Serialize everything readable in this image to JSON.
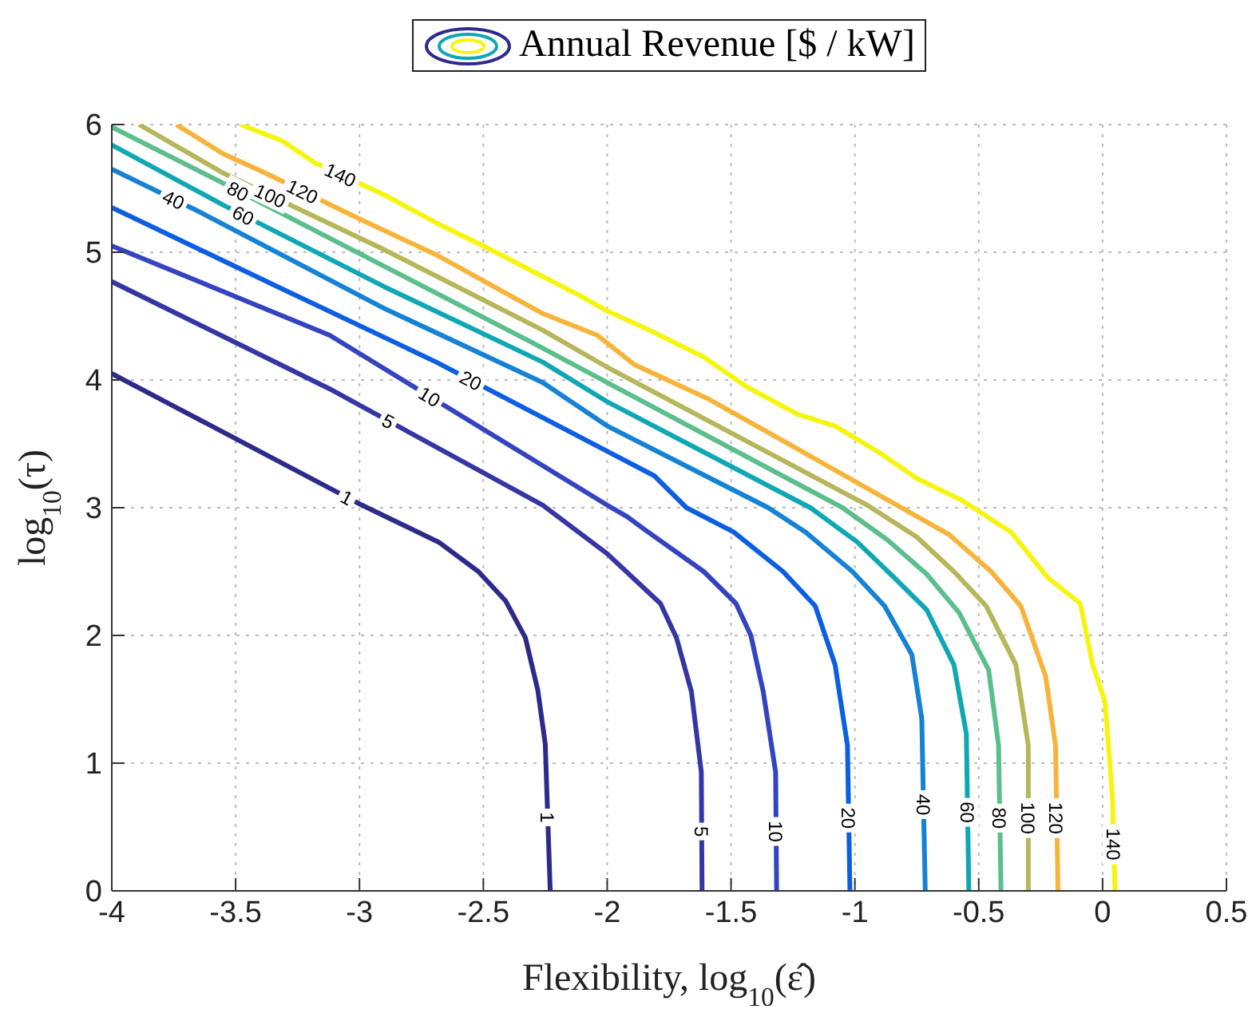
{
  "chart_data": {
    "type": "line",
    "legend_title": "Annual Revenue [$ / kW]",
    "xlabel": "Flexibility, log$_{10}$(ε̂)",
    "ylabel": "log$_{10}$(τ)",
    "xlim": [
      -4,
      0.5
    ],
    "xticks": [
      -4,
      -3.5,
      -3,
      -2.5,
      -2,
      -1.5,
      -1,
      -0.5,
      0,
      0.5
    ],
    "ylim": [
      0,
      6
    ],
    "yticks": [
      0,
      1,
      2,
      3,
      4,
      5,
      6
    ],
    "grid": true,
    "marker": "none",
    "line_style": "solid",
    "series": [
      {
        "name": "1",
        "color": "#2e2a8a",
        "x": [
          -4,
          -2.99,
          -2.68,
          -2.52,
          -2.41,
          -2.33,
          -2.28,
          -2.25,
          -2.23
        ],
        "values": [
          4.05,
          3.02,
          2.73,
          2.5,
          2.27,
          1.98,
          1.57,
          1.15,
          0
        ]
      },
      {
        "name": "5",
        "color": "#3336a3",
        "x": [
          -4,
          -3.12,
          -2.26,
          -2,
          -1.785,
          -1.72,
          -1.66,
          -1.62,
          -1.617
        ],
        "values": [
          4.77,
          3.93,
          3.02,
          2.64,
          2.25,
          1.98,
          1.56,
          0.93,
          0
        ]
      },
      {
        "name": "10",
        "color": "#3444c0",
        "x": [
          -4,
          -3.12,
          -2.0,
          -1.92,
          -1.85,
          -1.61,
          -1.48,
          -1.42,
          -1.37,
          -1.32,
          -1.316
        ],
        "values": [
          5.05,
          4.35,
          3.02,
          2.93,
          2.83,
          2.5,
          2.25,
          2.0,
          1.56,
          0.93,
          0
        ]
      },
      {
        "name": "20",
        "color": "#0c5fe0",
        "x": [
          -4,
          -3.33,
          -2.69,
          -1.81,
          -1.68,
          -1.49,
          -1.29,
          -1.16,
          -1.08,
          -1.03,
          -1.02
        ],
        "values": [
          5.35,
          4.73,
          4.14,
          3.25,
          3.0,
          2.81,
          2.5,
          2.23,
          1.77,
          1.14,
          0
        ]
      },
      {
        "name": "40",
        "color": "#1582d4",
        "x": [
          -4,
          -3.66,
          -2.9,
          -2.26,
          -2,
          -1.35,
          -1.2,
          -1.01,
          -0.88,
          -0.77,
          -0.73,
          -0.716
        ],
        "values": [
          5.65,
          5.33,
          4.56,
          3.98,
          3.64,
          3.0,
          2.81,
          2.5,
          2.23,
          1.85,
          1.35,
          0
        ]
      },
      {
        "name": "60",
        "color": "#10a7b5",
        "x": [
          -4,
          -3.55,
          -2.9,
          -2.26,
          -2,
          -1.18,
          -0.99,
          -0.84,
          -0.71,
          -0.6,
          -0.55,
          -0.54
        ],
        "values": [
          5.84,
          5.37,
          4.73,
          4.14,
          3.83,
          3.0,
          2.73,
          2.45,
          2.2,
          1.77,
          1.23,
          0
        ]
      },
      {
        "name": "80",
        "color": "#5bbf8c",
        "x": [
          -4,
          -3.57,
          -2.9,
          -2.3,
          -2,
          -1.05,
          -0.87,
          -0.71,
          -0.58,
          -0.46,
          -0.42,
          -0.41
        ],
        "values": [
          5.98,
          5.56,
          4.89,
          4.29,
          3.98,
          3.0,
          2.75,
          2.48,
          2.18,
          1.73,
          1.14,
          0
        ]
      },
      {
        "name": "100",
        "color": "#b6b65a",
        "x": [
          -3.89,
          -3.55,
          -2.9,
          -2.26,
          -2,
          -0.95,
          -0.75,
          -0.6,
          -0.47,
          -0.35,
          -0.3,
          -0.3
        ],
        "values": [
          6,
          5.62,
          5.02,
          4.39,
          4.1,
          3.02,
          2.77,
          2.5,
          2.23,
          1.77,
          1.14,
          0
        ]
      },
      {
        "name": "120",
        "color": "#f8b43a",
        "x": [
          -3.74,
          -3.55,
          -3.38,
          -3.01,
          -2.69,
          -2.26,
          -2.04,
          -1.89,
          -1.59,
          -1.25,
          -0.83,
          -0.62,
          -0.45,
          -0.33,
          -0.23,
          -0.19,
          -0.18
        ],
        "values": [
          6,
          5.77,
          5.62,
          5.27,
          4.98,
          4.52,
          4.35,
          4.12,
          3.85,
          3.48,
          3.02,
          2.79,
          2.5,
          2.23,
          1.68,
          1.14,
          0
        ]
      },
      {
        "name": "140",
        "color": "#f5f50f",
        "x": [
          -3.48,
          -3.31,
          -3.18,
          -2.9,
          -2.69,
          -2.47,
          -2.3,
          -2.11,
          -2,
          -1.83,
          -1.61,
          -1.44,
          -1.23,
          -1.08,
          -0.9,
          -0.75,
          -0.57,
          -0.37,
          -0.22,
          -0.09,
          -0.04,
          0.01,
          0.04,
          0.05
        ],
        "values": [
          6,
          5.87,
          5.7,
          5.45,
          5.23,
          5.02,
          4.85,
          4.66,
          4.54,
          4.39,
          4.18,
          3.95,
          3.73,
          3.64,
          3.43,
          3.23,
          3.06,
          2.81,
          2.45,
          2.25,
          1.77,
          1.48,
          0.73,
          0
        ]
      }
    ]
  }
}
